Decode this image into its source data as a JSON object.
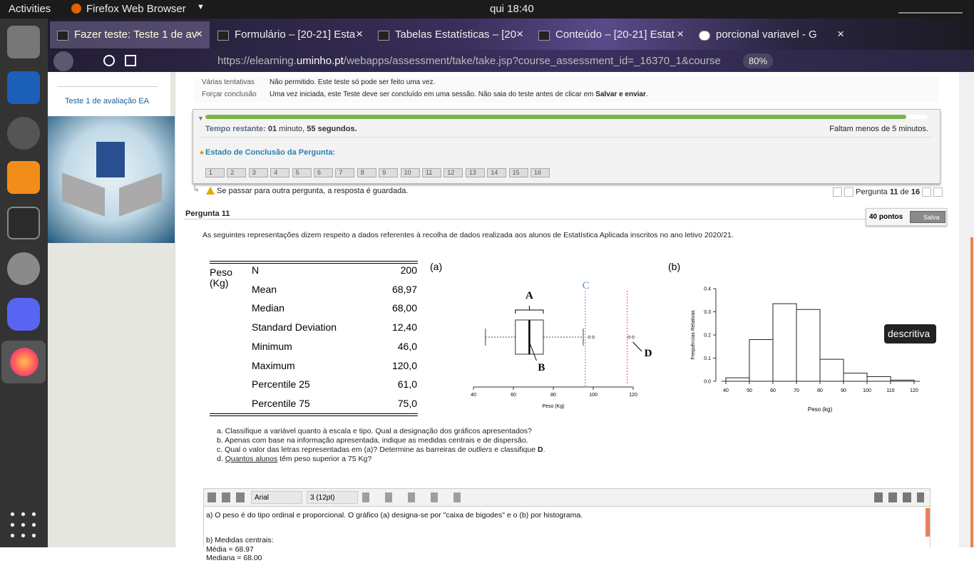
{
  "system_bar": {
    "activities": "Activities",
    "app": "Firefox Web Browser",
    "clock": "qui 18:40"
  },
  "browser": {
    "tabs": [
      "Fazer teste: Teste 1 de av",
      "Formulário – [20-21] Esta",
      "Tabelas Estatísticas – [20",
      "Conteúdo – [20-21] Estat",
      "porcional variavel - G"
    ],
    "url_prefix": "https://elearning.",
    "url_domain": "uminho.pt",
    "url_rest": "/webapps/assessment/take/take.jsp?course_assessment_id=_16370_1&course",
    "zoom": "80%"
  },
  "sidebar": {
    "link": "Teste 1 de avaliação EA"
  },
  "test_info": [
    {
      "label": "Várias tentativas",
      "text": "Não permitido. Este teste só pode ser feito uma vez.",
      "bold": "",
      "end": ""
    },
    {
      "label": "Forçar conclusão",
      "text": "Uma vez iniciada, este Teste deve ser concluído em uma sessão. Não saia do teste antes de clicar em ",
      "bold": "Salvar e enviar",
      "end": "."
    }
  ],
  "timer": {
    "label": "Tempo restante:",
    "minutes": "01",
    "minutes_unit": "minuto,",
    "seconds": "55",
    "seconds_unit": "segundos.",
    "warning": "Faltam menos de 5 minutos.",
    "progress_percent": 97,
    "status_title": "Estado de Conclusão da Pergunta:",
    "questions": [
      "1",
      "2",
      "3",
      "4",
      "5",
      "6",
      "7",
      "8",
      "9",
      "10",
      "11",
      "12",
      "13",
      "14",
      "15",
      "16"
    ]
  },
  "navigation": {
    "notice": "Se passar para outra pergunta, a resposta é guardada.",
    "pergunta": "Pergunta",
    "current": "11",
    "de": "de",
    "total": "16"
  },
  "question": {
    "title": "Pergunta 11",
    "points": "40 pontos",
    "status": "Salva",
    "intro": "As seguintes representações dizem respeito a dados referentes à recolha de dados realizada aos alunos de Estatística Aplicada inscritos no ano letivo 2020/21.",
    "table": {
      "variable": "Peso (Kg)",
      "rows": [
        [
          "N",
          "200"
        ],
        [
          "Mean",
          "68,97"
        ],
        [
          "Median",
          "68,00"
        ],
        [
          "Standard Deviation",
          "12,40"
        ],
        [
          "Minimum",
          "46,0"
        ],
        [
          "Maximum",
          "120,0"
        ],
        [
          "Percentile 25",
          "61,0"
        ],
        [
          "Percentile 75",
          "75,0"
        ]
      ]
    },
    "fig_a_label": "(a)",
    "fig_b_label": "(b)",
    "boxplot": {
      "type": "boxplot",
      "whisker_low": 46,
      "q1": 61,
      "median": 68,
      "q3": 75,
      "whisker_high": 95,
      "outliers": [
        98,
        100,
        118,
        120
      ],
      "line_C": 96,
      "line_D": 117,
      "labels": {
        "A": "A",
        "B": "B",
        "C": "C",
        "D": "D"
      },
      "xlabel": "Peso (Kg)",
      "xlim": [
        40,
        120
      ],
      "xticks": [
        40,
        60,
        80,
        100,
        120
      ]
    },
    "histogram": {
      "type": "histogram",
      "bins": [
        40,
        50,
        60,
        70,
        80,
        90,
        100,
        110,
        120
      ],
      "values": [
        0.015,
        0.18,
        0.335,
        0.31,
        0.095,
        0.035,
        0.02,
        0.005
      ],
      "xlabel": "Peso (kg)",
      "ylabel": "Frequências Relativas",
      "xlim": [
        40,
        120
      ],
      "ylim": [
        0,
        0.4
      ],
      "xticks": [
        40,
        50,
        60,
        70,
        80,
        90,
        100,
        110,
        120
      ],
      "yticks": [
        {
          "value": 0,
          "label": "0.0"
        },
        {
          "value": 0.1,
          "label": "0.1"
        },
        {
          "value": 0.2,
          "label": "0.2"
        },
        {
          "value": 0.3,
          "label": "0.3"
        },
        {
          "value": 0.4,
          "label": "0.4"
        }
      ]
    },
    "items": [
      [
        {
          "t": "a. Classifique a variável quanto à escala e tipo. Qual a designação dos gráficos apresentados?",
          "style": "normal"
        }
      ],
      [
        {
          "t": "b. Apenas com base na informação apresentada, indique as medidas centrais e de dispersão.",
          "style": "normal"
        }
      ],
      [
        {
          "t": "c. Qual o valor das letras representadas em (a)? Determine as barreiras de ",
          "style": "normal"
        },
        {
          "t": "outliers",
          "style": "italic"
        },
        {
          "t": " e classifique ",
          "style": "normal"
        },
        {
          "t": "D",
          "style": "bold"
        },
        {
          "t": ".",
          "style": "normal"
        }
      ],
      [
        {
          "t": "d. ",
          "style": "normal"
        },
        {
          "t": "Quantos alunos",
          "style": "underline"
        },
        {
          "t": " têm peso superior a 75 Kg?",
          "style": "normal"
        }
      ]
    ]
  },
  "tooltip": "descritiva",
  "editor": {
    "font": "Arial",
    "size": "3 (12pt)",
    "lines": [
      "a) O peso é do tipo ordinal e proporcional. O gráfico (a) designa-se por \"caixa de bigodes\" e o (b) por histograma.",
      "",
      "b) Medidas centrais:",
      "Média = 68.97",
      "Mediana = 68.00"
    ]
  }
}
